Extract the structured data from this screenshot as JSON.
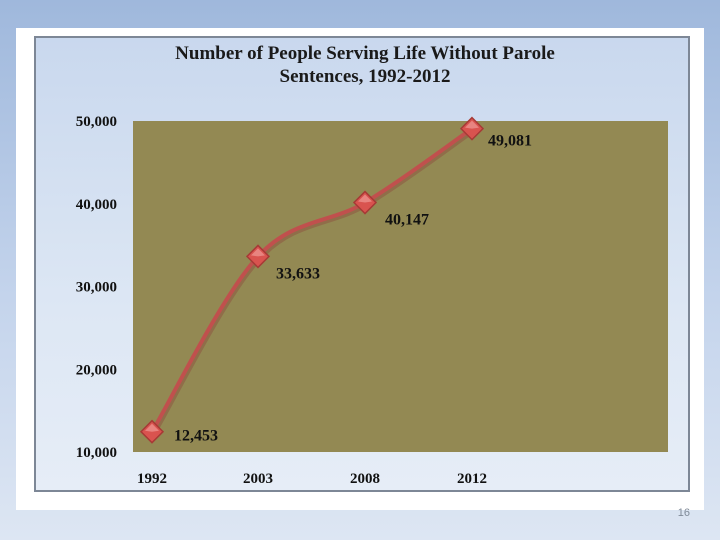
{
  "slide": {
    "page_number": "16"
  },
  "chart_data": {
    "type": "line",
    "title": "Number of People Serving Life Without Parole Sentences, 1992-2012",
    "title_lines": [
      "Number of People Serving Life Without Parole",
      "Sentences, 1992-2012"
    ],
    "xlabel": "",
    "ylabel": "",
    "categories": [
      "1992",
      "2003",
      "2008",
      "2012"
    ],
    "series": [
      {
        "values": [
          12453,
          33633,
          40147,
          49081
        ]
      }
    ],
    "data_labels": [
      "12,453",
      "33,633",
      "40,147",
      "49,081"
    ],
    "ylim": [
      10000,
      50000
    ],
    "y_ticks": [
      10000,
      20000,
      30000,
      40000,
      50000
    ],
    "y_tick_labels": [
      "10,000",
      "20,000",
      "30,000",
      "40,000",
      "50,000"
    ],
    "grid": false,
    "legend": "none",
    "colors": {
      "plot_area": "#938953",
      "line": "#c0504d",
      "marker": "#d9534f",
      "marker_edge": "#a63a36"
    }
  }
}
